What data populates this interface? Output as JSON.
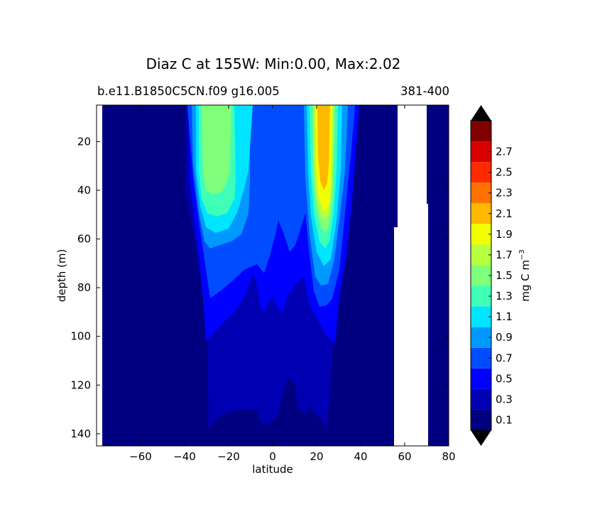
{
  "chart_data": {
    "type": "contour",
    "title": "Diaz C at 155W: Min:0.00, Max:2.02",
    "subtitle_left": "b.e11.B1850C5CN.f09 g16.005",
    "subtitle_right": "381-400",
    "xlabel": "latitude",
    "ylabel": "depth (m)",
    "xlim": [
      -80,
      80
    ],
    "ylim": [
      145,
      5
    ],
    "xticks": [
      -60,
      -40,
      -20,
      0,
      20,
      40,
      60,
      80
    ],
    "yticks": [
      20,
      40,
      60,
      80,
      100,
      120,
      140
    ],
    "colorbar": {
      "label": "mg C m",
      "label_sup": "−3",
      "ticks": [
        "0.1",
        "0.3",
        "0.5",
        "0.7",
        "0.9",
        "1.1",
        "1.3",
        "1.5",
        "1.7",
        "1.9",
        "2.1",
        "2.3",
        "2.5",
        "2.7"
      ],
      "extend": "both",
      "colors": [
        "#000080",
        "#0000b2",
        "#0000ff",
        "#004dff",
        "#0099ff",
        "#00e5ff",
        "#3fffb7",
        "#7fff7a",
        "#b7ff3f",
        "#f2ff00",
        "#ffb900",
        "#ff7100",
        "#ff2a00",
        "#d80000",
        "#800000"
      ]
    },
    "profiles": [
      {
        "lat": -80,
        "c": 0.0,
        "depth_03": 5,
        "depth_05": 5
      },
      {
        "lat": -40,
        "c": 0.05,
        "depth_03": 5,
        "depth_05": 5
      },
      {
        "lat": -35,
        "c": 0.9,
        "depth_03": 130,
        "depth_05": 100
      },
      {
        "lat": -26,
        "c": 1.7,
        "depth_03": 140,
        "depth_05": 90
      },
      {
        "lat": -20,
        "c": 1.6,
        "depth_03": 130,
        "depth_05": 88
      },
      {
        "lat": -12,
        "c": 1.1,
        "depth_03": 130,
        "depth_05": 80
      },
      {
        "lat": -5,
        "c": 0.3,
        "depth_03": 135,
        "depth_05": 80
      },
      {
        "lat": 0,
        "c": 0.5,
        "depth_03": 135,
        "depth_05": 83
      },
      {
        "lat": 8,
        "c": 0.55,
        "depth_03": 125,
        "depth_05": 85
      },
      {
        "lat": 15,
        "c": 0.35,
        "depth_03": 130,
        "depth_05": 80
      },
      {
        "lat": 24,
        "c": 2.02,
        "depth_03": 140,
        "depth_05": 85
      },
      {
        "lat": 32,
        "c": 0.7,
        "depth_03": 140,
        "depth_05": 95
      },
      {
        "lat": 40,
        "c": 0.05,
        "depth_03": 5,
        "depth_05": 5
      },
      {
        "lat": 56,
        "c": 0.0,
        "depth_03": 5,
        "depth_05": 5
      },
      {
        "lat": 80,
        "c": 0.0,
        "depth_03": 5,
        "depth_05": 5
      }
    ]
  }
}
